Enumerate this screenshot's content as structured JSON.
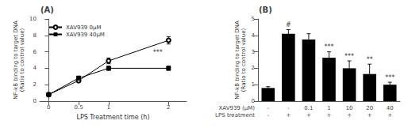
{
  "chart_data": [
    {
      "type": "line",
      "title": "(A)",
      "xlabel": "LPS Treatment time (h)",
      "ylabel": "NF-kB binding to target DNA\n(Ratio to control value)",
      "xlim": [
        -0.15,
        2.3
      ],
      "ylim": [
        0,
        10.0
      ],
      "xticks": [
        0,
        0.5,
        1,
        2
      ],
      "yticks": [
        0,
        2,
        4,
        6,
        8,
        10
      ],
      "grid": false,
      "legend": "upper left",
      "series": [
        {
          "name": "XAV939 0μM",
          "color": "black",
          "marker": "open-circle",
          "line_style": "solid",
          "x": [
            0,
            0.5,
            1,
            2
          ],
          "values": [
            0.8,
            2.5,
            4.9,
            7.4
          ],
          "yerr": [
            0.05,
            0.25,
            0.35,
            0.45
          ]
        },
        {
          "name": "XAV939 40μM",
          "color": "black",
          "marker": "square",
          "line_style": "solid",
          "x": [
            0,
            0.5,
            1,
            2
          ],
          "values": [
            0.8,
            2.8,
            4.0,
            4.0
          ],
          "yerr": [
            0.05,
            0.25,
            0.25,
            0.25
          ]
        }
      ],
      "annotations": [
        {
          "text": "***",
          "x": 1.82,
          "y": 5.5
        }
      ]
    },
    {
      "type": "bar",
      "title": "(B)",
      "ylabel": "NF-kB binding to target DNA\n(Ratio to control value)",
      "xlabel_rows": [
        "XAV939 (μM)",
        "LPS treatment"
      ],
      "categories": [
        "-",
        "-",
        "0.1",
        "1",
        "10",
        "20",
        "40"
      ],
      "lps_treatment": [
        "-",
        "+",
        "+",
        "+",
        "+",
        "+",
        "+"
      ],
      "values": [
        0.8,
        4.1,
        3.75,
        2.65,
        2.0,
        1.65,
        1.0
      ],
      "yerr": [
        0.08,
        0.25,
        0.35,
        0.35,
        0.45,
        0.6,
        0.15
      ],
      "color": "black",
      "annotations": [
        null,
        "#",
        null,
        "***",
        "***",
        "**",
        "***"
      ],
      "ylim": [
        0,
        5.0
      ],
      "yticks": [
        0,
        1,
        2,
        3,
        4,
        5
      ],
      "grid": false
    }
  ]
}
